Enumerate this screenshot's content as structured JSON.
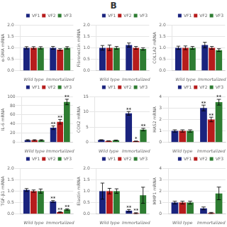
{
  "title": "B",
  "chart_data": [
    {
      "type": "bar",
      "y_label": "α-SMA mRNA",
      "categories": [
        "Wild type",
        "Immortalized"
      ],
      "series": [
        {
          "name": "VF1",
          "color": "#1a237e",
          "values": [
            1.0,
            1.0
          ],
          "errors": [
            0.05,
            0.06
          ]
        },
        {
          "name": "VF2",
          "color": "#b71c1c",
          "values": [
            1.0,
            0.92
          ],
          "errors": [
            0.05,
            0.04
          ]
        },
        {
          "name": "VF3",
          "color": "#2e7d32",
          "values": [
            1.0,
            1.0
          ],
          "errors": [
            0.05,
            0.05
          ]
        }
      ],
      "ylim": [
        0,
        2.0
      ],
      "yticks": [
        {
          "value": 0,
          "label": "0.0"
        },
        0.5,
        {
          "value": 1,
          "label": "1.0"
        },
        1.5,
        {
          "value": 2,
          "label": "2.0"
        }
      ],
      "legend": "upper right",
      "annotations": []
    },
    {
      "type": "bar",
      "y_label": "Fibronectin mRNA",
      "categories": [
        "Wild type",
        "Immortalized"
      ],
      "series": [
        {
          "name": "VF1",
          "color": "#1a237e",
          "values": [
            1.0,
            1.12
          ],
          "errors": [
            0.1,
            0.09
          ]
        },
        {
          "name": "VF2",
          "color": "#b71c1c",
          "values": [
            1.0,
            1.0
          ],
          "errors": [
            0.12,
            0.06
          ]
        },
        {
          "name": "VF3",
          "color": "#2e7d32",
          "values": [
            1.0,
            0.95
          ],
          "errors": [
            0.06,
            0.05
          ]
        }
      ],
      "ylim": [
        0,
        2.0
      ],
      "yticks": [
        {
          "value": 0,
          "label": "0.0"
        },
        0.5,
        {
          "value": 1,
          "label": "1.0"
        },
        1.5,
        {
          "value": 2,
          "label": "2.0"
        }
      ],
      "legend": "upper right",
      "annotations": []
    },
    {
      "type": "bar",
      "y_label": "COL1A2 mRNA",
      "categories": [
        "Wild type",
        "Immortalized"
      ],
      "series": [
        {
          "name": "VF1",
          "color": "#1a237e",
          "values": [
            1.0,
            1.12
          ],
          "errors": [
            0.07,
            0.12
          ]
        },
        {
          "name": "VF2",
          "color": "#b71c1c",
          "values": [
            1.0,
            1.0
          ],
          "errors": [
            0.08,
            0.06
          ]
        },
        {
          "name": "VF3",
          "color": "#2e7d32",
          "values": [
            1.0,
            0.9
          ],
          "errors": [
            0.06,
            0.06
          ]
        }
      ],
      "ylim": [
        0,
        2.0
      ],
      "yticks": [
        {
          "value": 0,
          "label": "0.0"
        },
        0.5,
        {
          "value": 1,
          "label": "1.0"
        },
        1.5,
        {
          "value": 2,
          "label": "2.0"
        }
      ],
      "legend": "upper right",
      "annotations": []
    },
    {
      "type": "bar",
      "y_label": "IL-6 mRNA",
      "categories": [
        "Wild type",
        "Immortalized"
      ],
      "series": [
        {
          "name": "VF1",
          "color": "#1a237e",
          "values": [
            5,
            32
          ],
          "errors": [
            1,
            4
          ]
        },
        {
          "name": "VF2",
          "color": "#b71c1c",
          "values": [
            5,
            45
          ],
          "errors": [
            1,
            5
          ]
        },
        {
          "name": "VF3",
          "color": "#2e7d32",
          "values": [
            5,
            88
          ],
          "errors": [
            1,
            6
          ]
        }
      ],
      "ylim": [
        0,
        100
      ],
      "yticks": [
        0,
        20,
        40,
        60,
        80,
        100
      ],
      "legend": "upper right",
      "annotations": [
        {
          "series": "VF1",
          "category": "Immortalized",
          "text": "**"
        },
        {
          "series": "VF2",
          "category": "Immortalized",
          "text": "**"
        },
        {
          "series": "VF3",
          "category": "Immortalized",
          "text": "**"
        }
      ]
    },
    {
      "type": "bar",
      "y_label": "COX2 mRNA",
      "categories": [
        "Wild type",
        "Immortalized"
      ],
      "series": [
        {
          "name": "VF1",
          "color": "#1a237e",
          "values": [
            0.8,
            9.5
          ],
          "errors": [
            0.1,
            0.6
          ]
        },
        {
          "name": "VF2",
          "color": "#b71c1c",
          "values": [
            0.5,
            0.4
          ],
          "errors": [
            0.05,
            0.05
          ]
        },
        {
          "name": "VF3",
          "color": "#2e7d32",
          "values": [
            0.7,
            4.2
          ],
          "errors": [
            0.08,
            0.4
          ]
        }
      ],
      "ylim": [
        0,
        15
      ],
      "yticks": [
        0,
        5,
        10,
        15
      ],
      "legend": "upper right",
      "annotations": [
        {
          "series": "VF1",
          "category": "Immortalized",
          "text": "**"
        },
        {
          "series": "VF2",
          "category": "Immortalized",
          "text": "*"
        },
        {
          "series": "VF3",
          "category": "Immortalized",
          "text": "**"
        }
      ]
    },
    {
      "type": "bar",
      "y_label": "HAS2 mRNA",
      "categories": [
        "Wild type",
        "Immortalized"
      ],
      "series": [
        {
          "name": "VF1",
          "color": "#1a237e",
          "values": [
            1.0,
            3.0
          ],
          "errors": [
            0.1,
            0.25
          ]
        },
        {
          "name": "VF2",
          "color": "#b71c1c",
          "values": [
            1.0,
            2.0
          ],
          "errors": [
            0.1,
            0.2
          ]
        },
        {
          "name": "VF3",
          "color": "#2e7d32",
          "values": [
            1.0,
            3.5
          ],
          "errors": [
            0.1,
            0.25
          ]
        }
      ],
      "ylim": [
        0,
        4
      ],
      "yticks": [
        0,
        1,
        2,
        3,
        4
      ],
      "legend": "upper right",
      "annotations": [
        {
          "series": "VF1",
          "category": "Immortalized",
          "text": "**"
        },
        {
          "series": "VF2",
          "category": "Immortalized",
          "text": "**"
        },
        {
          "series": "VF3",
          "category": "Immortalized",
          "text": "**"
        }
      ]
    },
    {
      "type": "bar",
      "y_label": "TGF-β1 mRNA",
      "categories": [
        "Wild type",
        "Immortalized"
      ],
      "series": [
        {
          "name": "VF1",
          "color": "#1a237e",
          "values": [
            1.05,
            0.55
          ],
          "errors": [
            0.06,
            0.04
          ]
        },
        {
          "name": "VF2",
          "color": "#b71c1c",
          "values": [
            1.0,
            0.09
          ],
          "errors": [
            0.05,
            0.02
          ]
        },
        {
          "name": "VF3",
          "color": "#2e7d32",
          "values": [
            1.0,
            0.2
          ],
          "errors": [
            0.09,
            0.03
          ]
        }
      ],
      "ylim": [
        0,
        2.0
      ],
      "yticks": [
        {
          "value": 0,
          "label": "0.0"
        },
        0.5,
        {
          "value": 1,
          "label": "1.0"
        },
        1.5,
        {
          "value": 2,
          "label": "2.0"
        }
      ],
      "legend": "upper right",
      "annotations": [
        {
          "series": "VF1",
          "category": "Immortalized",
          "text": "**"
        },
        {
          "series": "VF2",
          "category": "Immortalized",
          "text": "**"
        },
        {
          "series": "VF3",
          "category": "Immortalized",
          "text": "**"
        }
      ]
    },
    {
      "type": "bar",
      "y_label": "Elastin mRNA",
      "categories": [
        "Wild type",
        "Immortalized"
      ],
      "series": [
        {
          "name": "VF1",
          "color": "#1a237e",
          "values": [
            1.0,
            0.15
          ],
          "errors": [
            0.35,
            0.05
          ]
        },
        {
          "name": "VF2",
          "color": "#b71c1c",
          "values": [
            1.0,
            0.04
          ],
          "errors": [
            0.12,
            0.02
          ]
        },
        {
          "name": "VF3",
          "color": "#2e7d32",
          "values": [
            1.0,
            0.82
          ],
          "errors": [
            0.1,
            0.35
          ]
        }
      ],
      "ylim": [
        0,
        2.0
      ],
      "yticks": [
        {
          "value": 0,
          "label": "0.0"
        },
        0.5,
        {
          "value": 1,
          "label": "1.0"
        },
        1.5,
        {
          "value": 2,
          "label": "2.0"
        }
      ],
      "legend": "upper right",
      "annotations": [
        {
          "series": "VF1",
          "category": "Immortalized",
          "text": "**"
        },
        {
          "series": "VF2",
          "category": "Immortalized",
          "text": "**"
        }
      ]
    },
    {
      "type": "bar",
      "y_label": "MMP1 mRNA",
      "categories": [
        "Wild type",
        "Immortalized"
      ],
      "series": [
        {
          "name": "VF1",
          "color": "#1a237e",
          "values": [
            1.0,
            0.5
          ],
          "errors": [
            0.12,
            0.12
          ]
        },
        {
          "name": "VF2",
          "color": "#b71c1c",
          "values": [
            1.0,
            0.1
          ],
          "errors": [
            0.12,
            0.05
          ]
        },
        {
          "name": "VF3",
          "color": "#2e7d32",
          "values": [
            1.0,
            1.8
          ],
          "errors": [
            0.12,
            0.55
          ]
        }
      ],
      "ylim": [
        0,
        4
      ],
      "yticks": [
        0,
        1,
        2,
        3,
        4
      ],
      "legend": "upper right",
      "annotations": []
    }
  ]
}
